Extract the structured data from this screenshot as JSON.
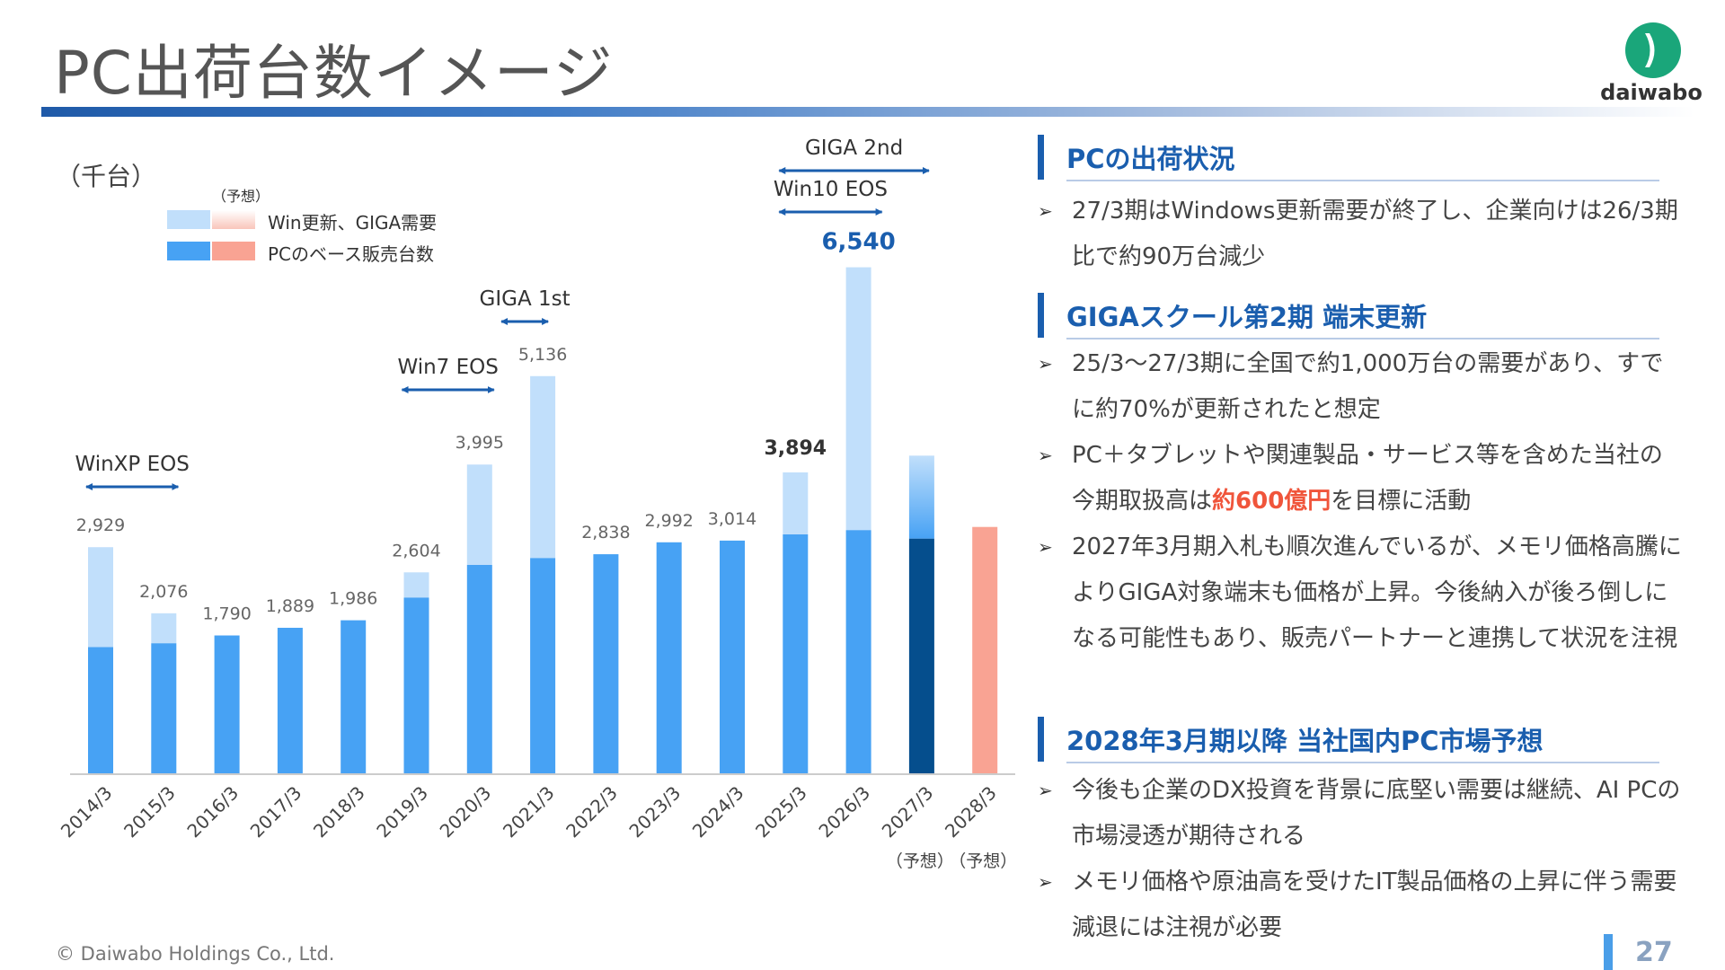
{
  "page": {
    "title": "PC出荷台数イメージ",
    "page_number": "27",
    "copyright": "© Daiwabo Holdings Co., Ltd.",
    "logo_text": "daiwabo"
  },
  "colors": {
    "base": "#47a2f4",
    "demand": "#c1dffb",
    "forecast_base_2027": "#054e8d",
    "forecast_2028": "#f9a393",
    "accent_text": "#1a5eae",
    "highlight": "#f0553b",
    "logo_green": "#1aa67a"
  },
  "chart_data": {
    "type": "bar",
    "unit_label": "（千台）",
    "legend": {
      "forecast_caption": "（予想）",
      "demand_label": "Win更新、GIGA需要",
      "base_label": "PCのベース販売台数"
    },
    "categories": [
      "2014/3",
      "2015/3",
      "2016/3",
      "2017/3",
      "2018/3",
      "2019/3",
      "2020/3",
      "2021/3",
      "2022/3",
      "2023/3",
      "2024/3",
      "2025/3",
      "2026/3",
      "2027/3",
      "2028/3"
    ],
    "forecast_labels": [
      "",
      "",
      "",
      "",
      "",
      "",
      "",
      "",
      "",
      "",
      "",
      "",
      "",
      "（予想）",
      "（予想）"
    ],
    "series": [
      {
        "name": "PCのベース販売台数",
        "values": [
          1640,
          1690,
          1790,
          1889,
          1986,
          2280,
          2700,
          2790,
          2838,
          2992,
          3014,
          3094,
          3150,
          3040,
          3190
        ]
      },
      {
        "name": "Win更新、GIGA需要",
        "values": [
          1289,
          386,
          0,
          0,
          0,
          324,
          1295,
          2346,
          0,
          0,
          0,
          800,
          3390,
          1070,
          0
        ]
      }
    ],
    "totals": [
      "2,929",
      "2,076",
      "1,790",
      "1,889",
      "1,986",
      "2,604",
      "3,995",
      "5,136",
      "2,838",
      "2,992",
      "3,014",
      "3,894",
      "6,540",
      "",
      ""
    ],
    "bold_totals": [
      11,
      12
    ],
    "ylim": [
      0,
      7000
    ],
    "events": [
      {
        "label": "WinXP EOS",
        "start": 0,
        "end": 1
      },
      {
        "label": "Win7 EOS",
        "start": 5,
        "end": 6
      },
      {
        "label": "GIGA 1st",
        "start": 7,
        "end": 7
      },
      {
        "label": "Win10 EOS",
        "start": 11,
        "end": 12
      },
      {
        "label": "GIGA 2nd",
        "start": 11,
        "end": 13
      }
    ]
  },
  "side": {
    "sections": [
      {
        "heading": "PCの出荷状況",
        "bullets": [
          {
            "pre": "27/3期はWindows更新需要が終了し、企業向けは26/3期比で約90万台減少",
            "hl": "",
            "post": ""
          }
        ]
      },
      {
        "heading": "GIGAスクール第2期 端末更新",
        "bullets": [
          {
            "pre": "25/3〜27/3期に全国で約1,000万台の需要があり、すでに約70%が更新されたと想定",
            "hl": "",
            "post": ""
          },
          {
            "pre": "PC＋タブレットや関連製品・サービス等を含めた当社の今期取扱高は",
            "hl": "約600億円",
            "post": "を目標に活動"
          },
          {
            "pre": "2027年3月期入札も順次進んでいるが、メモリ価格高騰によりGIGA対象端末も価格が上昇。今後納入が後ろ倒しになる可能性もあり、販売パートナーと連携して状況を注視",
            "hl": "",
            "post": ""
          }
        ]
      },
      {
        "heading": "2028年3月期以降 当社国内PC市場予想",
        "bullets": [
          {
            "pre": "今後も企業のDX投資を背景に底堅い需要は継続、AI PCの市場浸透が期待される",
            "hl": "",
            "post": ""
          },
          {
            "pre": "メモリ価格や原油高を受けたIT製品価格の上昇に伴う需要減退には注視が必要",
            "hl": "",
            "post": ""
          }
        ]
      }
    ],
    "bullet_marker": "➢"
  }
}
